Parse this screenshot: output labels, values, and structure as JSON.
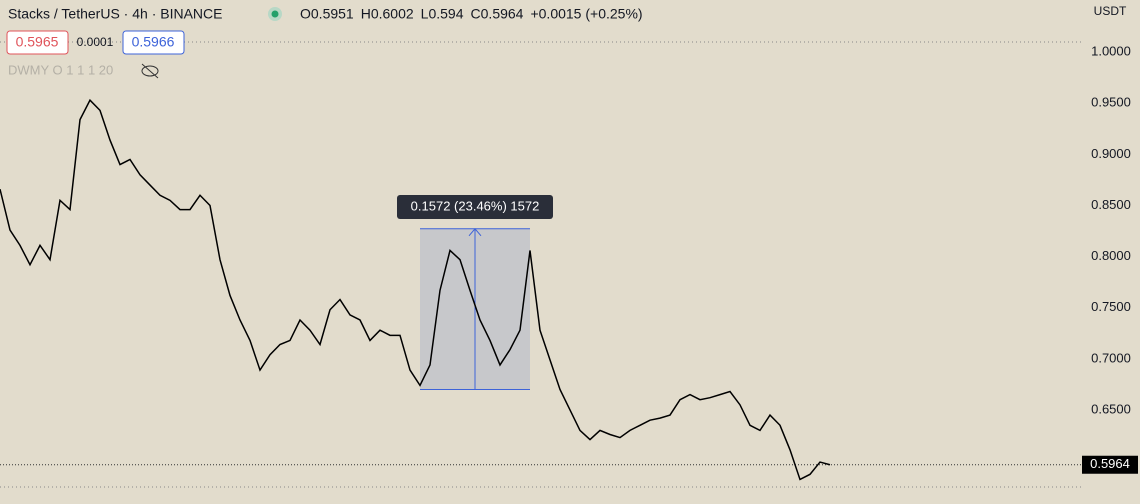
{
  "chart_data": {
    "type": "line",
    "title": "Stacks / TetherUS · 4h · BINANCE",
    "ohlc": [
      {
        "label": "O",
        "value": 0.5951
      },
      {
        "label": "H",
        "value": 0.6002
      },
      {
        "label": "L",
        "value": 0.594
      },
      {
        "label": "C",
        "value": 0.5964
      }
    ],
    "change": "+0.0015 (+0.25%)",
    "sell_price": "0.5965",
    "spread": "0.0001",
    "buy_price": "0.5966",
    "indicator_row": "DWMY O 1 1 1 20",
    "currency": "USDT",
    "color": "#000000",
    "values": [
      0.866,
      0.826,
      0.811,
      0.792,
      0.811,
      0.797,
      0.855,
      0.846,
      0.934,
      0.953,
      0.943,
      0.914,
      0.89,
      0.895,
      0.88,
      0.87,
      0.86,
      0.855,
      0.846,
      0.846,
      0.86,
      0.85,
      0.797,
      0.762,
      0.738,
      0.718,
      0.689,
      0.704,
      0.714,
      0.718,
      0.738,
      0.728,
      0.714,
      0.748,
      0.758,
      0.743,
      0.738,
      0.718,
      0.728,
      0.723,
      0.723,
      0.689,
      0.674,
      0.694,
      0.767,
      0.806,
      0.797,
      0.767,
      0.738,
      0.718,
      0.694,
      0.709,
      0.728,
      0.806,
      0.728,
      0.699,
      0.67,
      0.65,
      0.63,
      0.621,
      0.63,
      0.626,
      0.623,
      0.63,
      0.635,
      0.64,
      0.642,
      0.645,
      0.66,
      0.665,
      0.66,
      0.662,
      0.665,
      0.668,
      0.655,
      0.635,
      0.63,
      0.645,
      0.635,
      0.611,
      0.582,
      0.587,
      0.599,
      0.5964
    ],
    "ylim": [
      0.558,
      1.051
    ],
    "yticks": [
      {
        "value": 1,
        "label": "1.0000"
      },
      {
        "value": 0.95,
        "label": "0.9500"
      },
      {
        "value": 0.9,
        "label": "0.9000"
      },
      {
        "value": 0.85,
        "label": "0.8500"
      },
      {
        "value": 0.8,
        "label": "0.8000"
      },
      {
        "value": 0.75,
        "label": "0.7500"
      },
      {
        "value": 0.7,
        "label": "0.7000"
      },
      {
        "value": 0.65,
        "label": "0.6500"
      }
    ],
    "last_price": {
      "value": 0.5964,
      "label": "0.5964"
    },
    "measure": {
      "label": "0.1572 (23.46%) 1572",
      "from": 0.67,
      "to": 0.8272
    }
  }
}
